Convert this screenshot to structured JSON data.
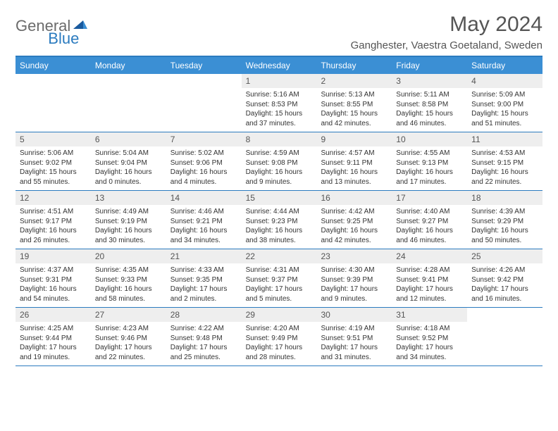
{
  "logo": {
    "text1": "General",
    "text2": "Blue"
  },
  "title": "May 2024",
  "location": "Ganghester, Vaestra Goetaland, Sweden",
  "colors": {
    "header_bar": "#3b8fd4",
    "border": "#2b7bbf",
    "day_header_bg": "#eeeeee",
    "text": "#333333",
    "title_text": "#555555",
    "background": "#ffffff"
  },
  "weekdays": [
    "Sunday",
    "Monday",
    "Tuesday",
    "Wednesday",
    "Thursday",
    "Friday",
    "Saturday"
  ],
  "weeks": [
    [
      {
        "day": "",
        "sunrise": "",
        "sunset": "",
        "daylight": ""
      },
      {
        "day": "",
        "sunrise": "",
        "sunset": "",
        "daylight": ""
      },
      {
        "day": "",
        "sunrise": "",
        "sunset": "",
        "daylight": ""
      },
      {
        "day": "1",
        "sunrise": "Sunrise: 5:16 AM",
        "sunset": "Sunset: 8:53 PM",
        "daylight": "Daylight: 15 hours and 37 minutes."
      },
      {
        "day": "2",
        "sunrise": "Sunrise: 5:13 AM",
        "sunset": "Sunset: 8:55 PM",
        "daylight": "Daylight: 15 hours and 42 minutes."
      },
      {
        "day": "3",
        "sunrise": "Sunrise: 5:11 AM",
        "sunset": "Sunset: 8:58 PM",
        "daylight": "Daylight: 15 hours and 46 minutes."
      },
      {
        "day": "4",
        "sunrise": "Sunrise: 5:09 AM",
        "sunset": "Sunset: 9:00 PM",
        "daylight": "Daylight: 15 hours and 51 minutes."
      }
    ],
    [
      {
        "day": "5",
        "sunrise": "Sunrise: 5:06 AM",
        "sunset": "Sunset: 9:02 PM",
        "daylight": "Daylight: 15 hours and 55 minutes."
      },
      {
        "day": "6",
        "sunrise": "Sunrise: 5:04 AM",
        "sunset": "Sunset: 9:04 PM",
        "daylight": "Daylight: 16 hours and 0 minutes."
      },
      {
        "day": "7",
        "sunrise": "Sunrise: 5:02 AM",
        "sunset": "Sunset: 9:06 PM",
        "daylight": "Daylight: 16 hours and 4 minutes."
      },
      {
        "day": "8",
        "sunrise": "Sunrise: 4:59 AM",
        "sunset": "Sunset: 9:08 PM",
        "daylight": "Daylight: 16 hours and 9 minutes."
      },
      {
        "day": "9",
        "sunrise": "Sunrise: 4:57 AM",
        "sunset": "Sunset: 9:11 PM",
        "daylight": "Daylight: 16 hours and 13 minutes."
      },
      {
        "day": "10",
        "sunrise": "Sunrise: 4:55 AM",
        "sunset": "Sunset: 9:13 PM",
        "daylight": "Daylight: 16 hours and 17 minutes."
      },
      {
        "day": "11",
        "sunrise": "Sunrise: 4:53 AM",
        "sunset": "Sunset: 9:15 PM",
        "daylight": "Daylight: 16 hours and 22 minutes."
      }
    ],
    [
      {
        "day": "12",
        "sunrise": "Sunrise: 4:51 AM",
        "sunset": "Sunset: 9:17 PM",
        "daylight": "Daylight: 16 hours and 26 minutes."
      },
      {
        "day": "13",
        "sunrise": "Sunrise: 4:49 AM",
        "sunset": "Sunset: 9:19 PM",
        "daylight": "Daylight: 16 hours and 30 minutes."
      },
      {
        "day": "14",
        "sunrise": "Sunrise: 4:46 AM",
        "sunset": "Sunset: 9:21 PM",
        "daylight": "Daylight: 16 hours and 34 minutes."
      },
      {
        "day": "15",
        "sunrise": "Sunrise: 4:44 AM",
        "sunset": "Sunset: 9:23 PM",
        "daylight": "Daylight: 16 hours and 38 minutes."
      },
      {
        "day": "16",
        "sunrise": "Sunrise: 4:42 AM",
        "sunset": "Sunset: 9:25 PM",
        "daylight": "Daylight: 16 hours and 42 minutes."
      },
      {
        "day": "17",
        "sunrise": "Sunrise: 4:40 AM",
        "sunset": "Sunset: 9:27 PM",
        "daylight": "Daylight: 16 hours and 46 minutes."
      },
      {
        "day": "18",
        "sunrise": "Sunrise: 4:39 AM",
        "sunset": "Sunset: 9:29 PM",
        "daylight": "Daylight: 16 hours and 50 minutes."
      }
    ],
    [
      {
        "day": "19",
        "sunrise": "Sunrise: 4:37 AM",
        "sunset": "Sunset: 9:31 PM",
        "daylight": "Daylight: 16 hours and 54 minutes."
      },
      {
        "day": "20",
        "sunrise": "Sunrise: 4:35 AM",
        "sunset": "Sunset: 9:33 PM",
        "daylight": "Daylight: 16 hours and 58 minutes."
      },
      {
        "day": "21",
        "sunrise": "Sunrise: 4:33 AM",
        "sunset": "Sunset: 9:35 PM",
        "daylight": "Daylight: 17 hours and 2 minutes."
      },
      {
        "day": "22",
        "sunrise": "Sunrise: 4:31 AM",
        "sunset": "Sunset: 9:37 PM",
        "daylight": "Daylight: 17 hours and 5 minutes."
      },
      {
        "day": "23",
        "sunrise": "Sunrise: 4:30 AM",
        "sunset": "Sunset: 9:39 PM",
        "daylight": "Daylight: 17 hours and 9 minutes."
      },
      {
        "day": "24",
        "sunrise": "Sunrise: 4:28 AM",
        "sunset": "Sunset: 9:41 PM",
        "daylight": "Daylight: 17 hours and 12 minutes."
      },
      {
        "day": "25",
        "sunrise": "Sunrise: 4:26 AM",
        "sunset": "Sunset: 9:42 PM",
        "daylight": "Daylight: 17 hours and 16 minutes."
      }
    ],
    [
      {
        "day": "26",
        "sunrise": "Sunrise: 4:25 AM",
        "sunset": "Sunset: 9:44 PM",
        "daylight": "Daylight: 17 hours and 19 minutes."
      },
      {
        "day": "27",
        "sunrise": "Sunrise: 4:23 AM",
        "sunset": "Sunset: 9:46 PM",
        "daylight": "Daylight: 17 hours and 22 minutes."
      },
      {
        "day": "28",
        "sunrise": "Sunrise: 4:22 AM",
        "sunset": "Sunset: 9:48 PM",
        "daylight": "Daylight: 17 hours and 25 minutes."
      },
      {
        "day": "29",
        "sunrise": "Sunrise: 4:20 AM",
        "sunset": "Sunset: 9:49 PM",
        "daylight": "Daylight: 17 hours and 28 minutes."
      },
      {
        "day": "30",
        "sunrise": "Sunrise: 4:19 AM",
        "sunset": "Sunset: 9:51 PM",
        "daylight": "Daylight: 17 hours and 31 minutes."
      },
      {
        "day": "31",
        "sunrise": "Sunrise: 4:18 AM",
        "sunset": "Sunset: 9:52 PM",
        "daylight": "Daylight: 17 hours and 34 minutes."
      },
      {
        "day": "",
        "sunrise": "",
        "sunset": "",
        "daylight": ""
      }
    ]
  ]
}
